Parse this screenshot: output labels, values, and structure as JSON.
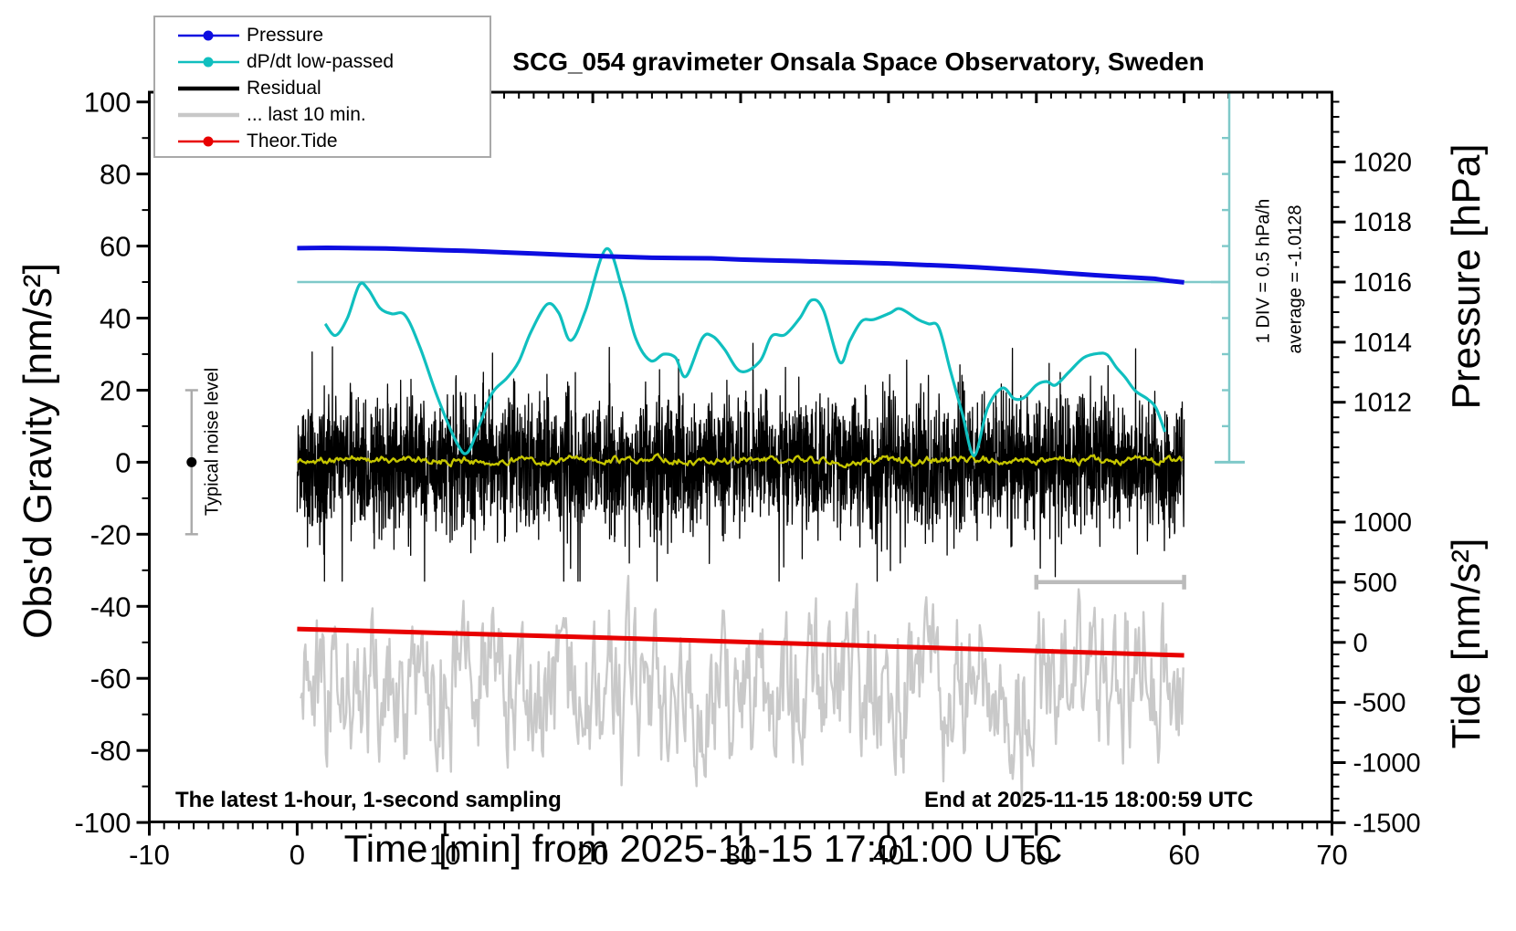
{
  "title": "SCG_054 gravimeter Onsala Space Observatory, Sweden",
  "legend": {
    "items": [
      {
        "label": "Pressure",
        "color": "#0d0de0",
        "line_width": 2.5,
        "dot": true
      },
      {
        "label": "dP/dt low-passed",
        "color": "#10bfbf",
        "line_width": 2.5,
        "dot": true
      },
      {
        "label": "Residual",
        "color": "#000000",
        "line_width": 4.5,
        "dot": false
      },
      {
        "label": "... last 10 min.",
        "color": "#c8c8c8",
        "line_width": 4.5,
        "dot": false
      },
      {
        "label": "Theor.Tide",
        "color": "#e80000",
        "line_width": 2.5,
        "dot": true
      }
    ]
  },
  "annotations": {
    "div_scale": "1 DIV = 0.5 hPa/h",
    "average": "average = -1.0128",
    "noise_level": "Typical noise level",
    "sampling_note": "The latest 1-hour, 1-second sampling",
    "end_note": "End at 2025-11-15 18:00:59 UTC"
  },
  "chart_data": {
    "type": "line",
    "title": "SCG_054 gravimeter Onsala Space Observatory, Sweden",
    "grid": false,
    "legend_position": "top-left",
    "x_axis": {
      "label": "Time [min] from 2025-11-15 17:01:00 UTC",
      "range": [
        -10,
        70
      ],
      "major_tick": 10,
      "minor_tick": 1,
      "tick_labels": [
        -10,
        0,
        10,
        20,
        30,
        40,
        50,
        60,
        70
      ]
    },
    "y_left": {
      "label": "Obs'd Gravity [nm/s²]",
      "range": [
        -100,
        102.7
      ],
      "major_tick": 20,
      "minor_tick": 10,
      "tick_labels": [
        100,
        80,
        60,
        40,
        20,
        0,
        -20,
        -40,
        -60,
        -80,
        -100
      ]
    },
    "y_right_pressure": {
      "label": "Pressure [hPa]",
      "tick_labels": [
        1020,
        1018,
        1016,
        1014,
        1012
      ],
      "minor_tick_hpa": 0.5,
      "major_tick_hpa": 2,
      "hpa_at_gravity50": 1016,
      "gravity_units_per_hpa": 8.34,
      "minor_range": [
        1009,
        1022.5
      ]
    },
    "y_right_tide": {
      "label": "Tide [nm/s²]",
      "tick_labels": [
        1000,
        500,
        0,
        -500,
        -1000,
        -1500
      ],
      "minor_tick": 100,
      "major_tick": 500,
      "tide_at_gravity_minus50": 0,
      "gravity_units_per_500": 16.685,
      "minor_range": [
        -1500,
        1100
      ]
    },
    "series": [
      {
        "name": "Pressure",
        "unit": "hPa",
        "color": "#0d0de0",
        "width": 5,
        "points": [
          [
            0,
            1017.13
          ],
          [
            2,
            1017.14
          ],
          [
            4,
            1017.13
          ],
          [
            6,
            1017.12
          ],
          [
            8,
            1017.09
          ],
          [
            10,
            1017.06
          ],
          [
            12,
            1017.03
          ],
          [
            14,
            1016.99
          ],
          [
            16,
            1016.95
          ],
          [
            18,
            1016.91
          ],
          [
            20,
            1016.87
          ],
          [
            22,
            1016.84
          ],
          [
            24,
            1016.81
          ],
          [
            26,
            1016.8
          ],
          [
            28,
            1016.79
          ],
          [
            30,
            1016.75
          ],
          [
            32,
            1016.72
          ],
          [
            34,
            1016.7
          ],
          [
            36,
            1016.67
          ],
          [
            38,
            1016.65
          ],
          [
            40,
            1016.62
          ],
          [
            42,
            1016.58
          ],
          [
            44,
            1016.54
          ],
          [
            46,
            1016.49
          ],
          [
            48,
            1016.43
          ],
          [
            50,
            1016.37
          ],
          [
            52,
            1016.3
          ],
          [
            54,
            1016.23
          ],
          [
            56,
            1016.17
          ],
          [
            58,
            1016.11
          ],
          [
            59,
            1016.04
          ],
          [
            60,
            1015.99
          ]
        ]
      },
      {
        "name": "dP/dt low-passed",
        "unit": "hPa/h",
        "color": "#10bfbf",
        "width": 3.2,
        "zero_at_gravity": 50,
        "gravity_units_per_hpa_h": 20,
        "points": [
          [
            1.9,
            -0.58
          ],
          [
            2.6,
            -0.74
          ],
          [
            3.4,
            -0.5
          ],
          [
            4.2,
            -0.04
          ],
          [
            4.8,
            -0.1
          ],
          [
            5.6,
            -0.36
          ],
          [
            6.4,
            -0.44
          ],
          [
            7.3,
            -0.46
          ],
          [
            8.3,
            -0.9
          ],
          [
            9.5,
            -1.6
          ],
          [
            10.8,
            -2.23
          ],
          [
            11.5,
            -2.37
          ],
          [
            12.3,
            -2.0
          ],
          [
            13.2,
            -1.54
          ],
          [
            14.2,
            -1.33
          ],
          [
            15.0,
            -1.1
          ],
          [
            15.8,
            -0.7
          ],
          [
            16.9,
            -0.31
          ],
          [
            17.7,
            -0.43
          ],
          [
            18.5,
            -0.81
          ],
          [
            19.5,
            -0.4
          ],
          [
            20.9,
            0.46
          ],
          [
            22.0,
            -0.1
          ],
          [
            22.9,
            -0.78
          ],
          [
            23.9,
            -1.09
          ],
          [
            24.8,
            -1.0
          ],
          [
            25.6,
            -1.05
          ],
          [
            26.3,
            -1.31
          ],
          [
            27.4,
            -0.78
          ],
          [
            28.1,
            -0.75
          ],
          [
            28.9,
            -0.93
          ],
          [
            30.0,
            -1.24
          ],
          [
            31.3,
            -1.1
          ],
          [
            32.1,
            -0.75
          ],
          [
            33.0,
            -0.73
          ],
          [
            34.0,
            -0.5
          ],
          [
            34.8,
            -0.25
          ],
          [
            35.6,
            -0.39
          ],
          [
            36.7,
            -1.11
          ],
          [
            37.4,
            -0.81
          ],
          [
            38.2,
            -0.54
          ],
          [
            39.0,
            -0.52
          ],
          [
            40.1,
            -0.43
          ],
          [
            40.8,
            -0.37
          ],
          [
            42.0,
            -0.52
          ],
          [
            42.7,
            -0.58
          ],
          [
            43.4,
            -0.63
          ],
          [
            44.2,
            -1.24
          ],
          [
            45.0,
            -1.83
          ],
          [
            45.8,
            -2.41
          ],
          [
            46.7,
            -1.75
          ],
          [
            47.7,
            -1.47
          ],
          [
            48.5,
            -1.62
          ],
          [
            49.2,
            -1.6
          ],
          [
            50.0,
            -1.43
          ],
          [
            50.7,
            -1.38
          ],
          [
            51.3,
            -1.43
          ],
          [
            52.2,
            -1.25
          ],
          [
            53.2,
            -1.05
          ],
          [
            54.2,
            -0.99
          ],
          [
            54.8,
            -1.01
          ],
          [
            55.4,
            -1.18
          ],
          [
            56.0,
            -1.32
          ],
          [
            56.7,
            -1.51
          ],
          [
            57.5,
            -1.62
          ],
          [
            58.1,
            -1.75
          ],
          [
            58.7,
            -2.08
          ]
        ]
      },
      {
        "name": "Residual",
        "unit": "nm/s²",
        "color": "#000000",
        "width": 1.3,
        "description": "1-second residual gravity noise, zero mean, dense band ±15 with spikes to ±33",
        "noise": {
          "seed": 20251115,
          "sigma": 9,
          "spike_prob": 0.04,
          "spike_gain": 2.0,
          "clip": 33,
          "points_per_min": 60,
          "t_range": [
            0,
            60
          ],
          "mean": 0
        }
      },
      {
        "name": "Residual low-passed",
        "unit": "nm/s²",
        "color": "#c6c600",
        "width": 2.4,
        "description": "smoothed residual wiggling around zero, amplitude about ±2.5",
        "noise": {
          "seed": 4321,
          "ar": 0.72,
          "step": 1.6,
          "scale": 2.2,
          "mean": 0.6,
          "clip": 3.2,
          "points_per_min": 10,
          "t_range": [
            0,
            60
          ]
        }
      },
      {
        "name": "... last 10 min.",
        "unit": "nm/s² (gravity axis)",
        "color": "#c9c9c9",
        "width": 2.4,
        "description": "jagged gray trace centered near -62, range about -93 to -29",
        "noise": {
          "seed": 98765,
          "ar": 0.55,
          "step": 2.0,
          "scale": 16.5,
          "mean": -62,
          "clip_low": -94,
          "clip_high": -28,
          "points_per_min": 13,
          "t_range": [
            0.25,
            60
          ]
        }
      },
      {
        "name": "Theor.Tide",
        "unit": "nm/s² (tide axis)",
        "color": "#e80000",
        "width": 5,
        "points": [
          [
            0,
            111
          ],
          [
            10,
            77
          ],
          [
            20,
            41
          ],
          [
            30,
            4
          ],
          [
            40,
            -34
          ],
          [
            50,
            -71
          ],
          [
            60,
            -108
          ]
        ]
      }
    ],
    "markers": {
      "dpdt_zero_line": {
        "gravity": 50,
        "t_range": [
          0,
          63.05
        ],
        "color": "#7fc9c9"
      },
      "dpdt_ruler": {
        "t": 63.05,
        "gravity_range": [
          0,
          102.7
        ],
        "tick_every_gravity": 10,
        "long_tick_at": 50,
        "div_value_hpa_h": 0.5,
        "color": "#7fc9c9"
      },
      "last10_bar": {
        "t_range": [
          50,
          60
        ],
        "gravity": -33.3,
        "color": "#bbbbbb"
      },
      "noise_whisker": {
        "t": -7.14,
        "gravity_range": [
          -20,
          20
        ],
        "dot_at": 0,
        "color": "#ababab"
      }
    }
  },
  "axis_labels": {
    "x": "Time [min] from 2025-11-15 17:01:00 UTC",
    "y_left": "Obs'd Gravity [nm/s²]",
    "y_right_top": "Pressure [hPa]",
    "y_right_bottom": "Tide [nm/s²]"
  }
}
